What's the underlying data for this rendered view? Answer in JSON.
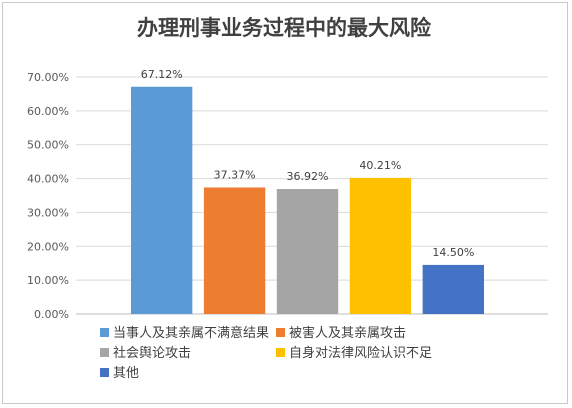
{
  "chart_data": {
    "type": "bar",
    "title": "办理刑事业务过程中的最大风险",
    "xlabel": "",
    "ylabel": "",
    "ylim": [
      0,
      70
    ],
    "yticks": [
      "0.00%",
      "10.00%",
      "20.00%",
      "30.00%",
      "40.00%",
      "50.00%",
      "60.00%",
      "70.00%"
    ],
    "grid": true,
    "legend_position": "bottom",
    "categories": [
      "当事人及其亲属不满意结果",
      "被害人及其亲属攻击",
      "社会舆论攻击",
      "自身对法律风险认识不足",
      "其他"
    ],
    "values": [
      67.12,
      37.37,
      36.92,
      40.21,
      14.5
    ],
    "data_labels": [
      "67.12%",
      "37.37%",
      "36.92%",
      "40.21%",
      "14.50%"
    ],
    "colors": [
      "#5b9bd5",
      "#ed7d31",
      "#a5a5a5",
      "#ffc000",
      "#4472c4"
    ]
  }
}
